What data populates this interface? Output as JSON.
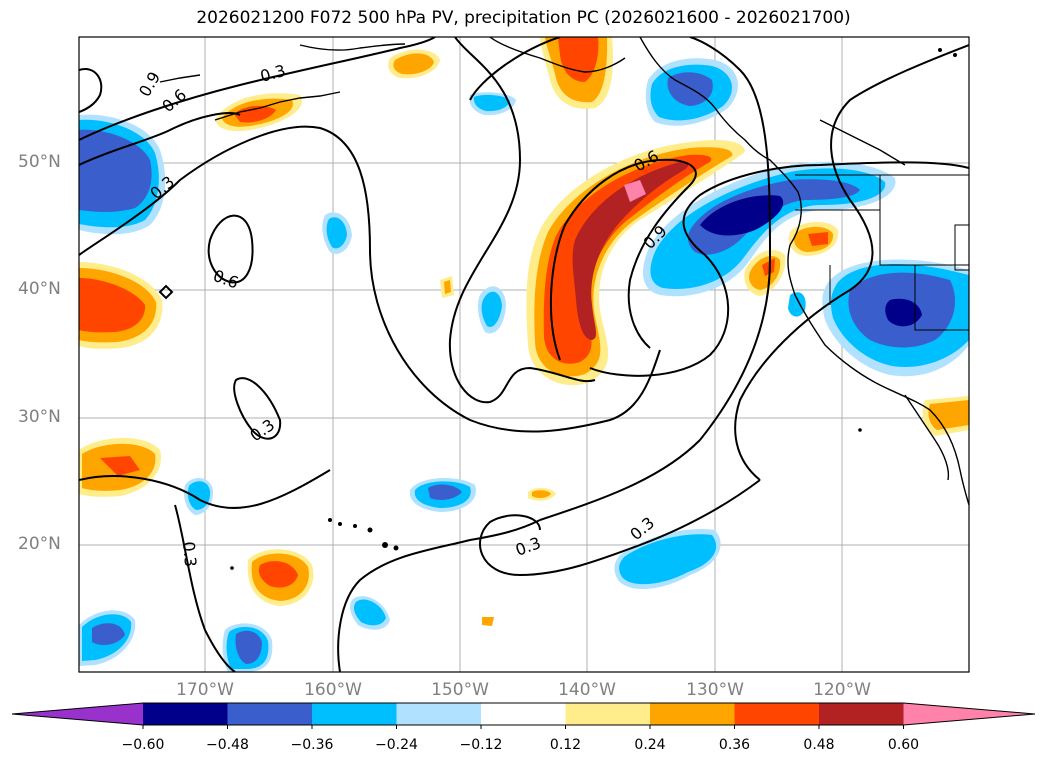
{
  "title": "2026021200 F072 500 hPa PV, precipitation PC (2026021600 - 2026021700)",
  "lat_labels": [
    "50°N",
    "40°N",
    "30°N",
    "20°N"
  ],
  "lon_labels": [
    "170°W",
    "160°W",
    "150°W",
    "140°W",
    "130°W",
    "120°W"
  ],
  "contour_labels": [
    "0.9",
    "0.6",
    "0.3",
    "0.3",
    "0.6",
    "0.6",
    "0.9",
    "0.3",
    "0.3",
    "0.3",
    "0.3"
  ],
  "colorbar": {
    "ticks": [
      "−0.60",
      "−0.48",
      "−0.36",
      "−0.24",
      "−0.12",
      "0.12",
      "0.24",
      "0.36",
      "0.48",
      "0.60"
    ],
    "colors": [
      "#9932cc",
      "#00008b",
      "#3a5fcd",
      "#00bfff",
      "#b0e2ff",
      "#ffffff",
      "#ffec8b",
      "#ffa500",
      "#ff4500",
      "#b22222",
      "#ff82ab"
    ]
  },
  "colors": {
    "neg_light": "#b0e2ff",
    "neg_mid": "#00bfff",
    "neg_strong": "#3a5fcd",
    "neg_max": "#00008b",
    "pos_light": "#ffec8b",
    "pos_mid": "#ffa500",
    "pos_strong": "#ff4500",
    "pos_max": "#b22222",
    "pos_peak": "#ff82ab"
  }
}
